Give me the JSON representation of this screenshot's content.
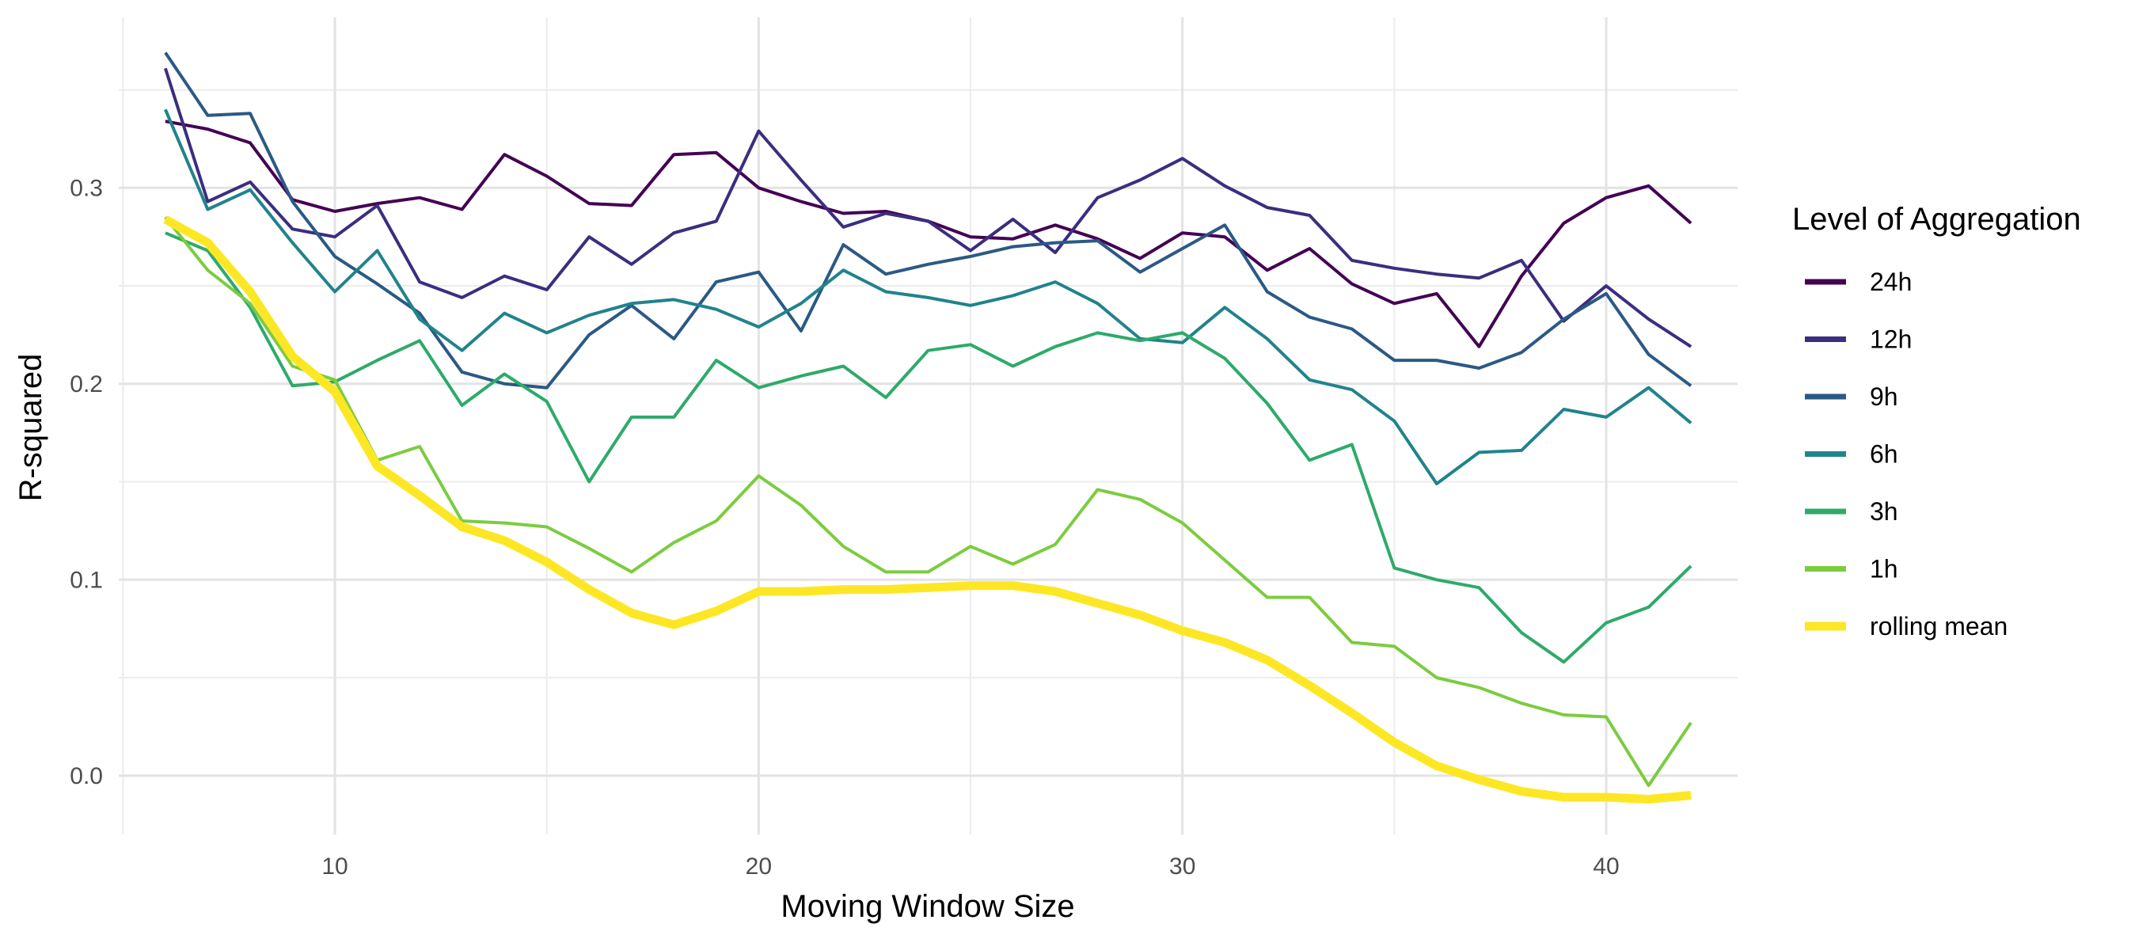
{
  "chart_data": {
    "type": "line",
    "xlabel": "Moving Window Size",
    "ylabel": "R-squared",
    "xlim": [
      4.9,
      43.1
    ],
    "ylim": [
      -0.03,
      0.387
    ],
    "x_ticks": [
      10,
      20,
      30,
      40
    ],
    "x_tick_labels": [
      "10",
      "20",
      "30",
      "40"
    ],
    "x_minor": [
      5,
      15,
      25,
      35
    ],
    "y_ticks": [
      0.0,
      0.1,
      0.2,
      0.3
    ],
    "y_tick_labels": [
      "0.0",
      "0.1",
      "0.2",
      "0.3"
    ],
    "y_minor": [
      0.05,
      0.15,
      0.25,
      0.35
    ],
    "grid": true,
    "legend_title": "Level of Aggregation",
    "legend_position": "right",
    "x": [
      6,
      7,
      8,
      9,
      10,
      11,
      12,
      13,
      14,
      15,
      16,
      17,
      18,
      19,
      20,
      21,
      22,
      23,
      24,
      25,
      26,
      27,
      28,
      29,
      30,
      31,
      32,
      33,
      34,
      35,
      36,
      37,
      38,
      39,
      40,
      41,
      42
    ],
    "series": [
      {
        "name": "24h",
        "color": "#440154",
        "width": "thin",
        "values": [
          0.334,
          0.33,
          0.323,
          0.294,
          0.288,
          0.292,
          0.295,
          0.289,
          0.317,
          0.306,
          0.292,
          0.291,
          0.317,
          0.318,
          0.3,
          0.293,
          0.287,
          0.288,
          0.283,
          0.275,
          0.274,
          0.281,
          0.274,
          0.264,
          0.277,
          0.275,
          0.258,
          0.269,
          0.251,
          0.241,
          0.246,
          0.219,
          0.255,
          0.282,
          0.295,
          0.301,
          0.282
        ]
      },
      {
        "name": "12h",
        "color": "#3b2e7f",
        "width": "thin",
        "values": [
          0.361,
          0.293,
          0.303,
          0.279,
          0.275,
          0.291,
          0.252,
          0.244,
          0.255,
          0.248,
          0.275,
          0.261,
          0.277,
          0.283,
          0.329,
          0.304,
          0.28,
          0.287,
          0.283,
          0.268,
          0.284,
          0.267,
          0.295,
          0.304,
          0.315,
          0.301,
          0.29,
          0.286,
          0.263,
          0.259,
          0.256,
          0.254,
          0.263,
          0.232,
          0.25,
          0.233,
          0.219
        ]
      },
      {
        "name": "9h",
        "color": "#2b5985",
        "width": "thin",
        "values": [
          0.369,
          0.337,
          0.338,
          0.293,
          0.265,
          0.251,
          0.236,
          0.206,
          0.2,
          0.198,
          0.225,
          0.24,
          0.223,
          0.252,
          0.257,
          0.227,
          0.271,
          0.256,
          0.261,
          0.265,
          0.27,
          0.272,
          0.273,
          0.257,
          0.269,
          0.281,
          0.247,
          0.234,
          0.228,
          0.212,
          0.212,
          0.208,
          0.216,
          0.233,
          0.246,
          0.215,
          0.199
        ]
      },
      {
        "name": "6h",
        "color": "#21838c",
        "width": "thin",
        "values": [
          0.34,
          0.289,
          0.299,
          0.272,
          0.247,
          0.268,
          0.233,
          0.217,
          0.236,
          0.226,
          0.235,
          0.241,
          0.243,
          0.238,
          0.229,
          0.241,
          0.258,
          0.247,
          0.244,
          0.24,
          0.245,
          0.252,
          0.241,
          0.223,
          0.221,
          0.239,
          0.223,
          0.202,
          0.197,
          0.181,
          0.149,
          0.165,
          0.166,
          0.187,
          0.183,
          0.198,
          0.18
        ]
      },
      {
        "name": "3h",
        "color": "#2eaa6a",
        "width": "thin",
        "values": [
          0.277,
          0.268,
          0.239,
          0.199,
          0.201,
          0.212,
          0.222,
          0.189,
          0.205,
          0.191,
          0.15,
          0.183,
          0.183,
          0.212,
          0.198,
          0.204,
          0.209,
          0.193,
          0.217,
          0.22,
          0.209,
          0.219,
          0.226,
          0.222,
          0.226,
          0.213,
          0.19,
          0.161,
          0.169,
          0.106,
          0.1,
          0.096,
          0.073,
          0.058,
          0.078,
          0.086,
          0.107
        ]
      },
      {
        "name": "1h",
        "color": "#7ccc3f",
        "width": "thin",
        "values": [
          0.285,
          0.258,
          0.241,
          0.209,
          0.202,
          0.161,
          0.168,
          0.13,
          0.129,
          0.127,
          0.116,
          0.104,
          0.119,
          0.13,
          0.153,
          0.138,
          0.117,
          0.104,
          0.104,
          0.117,
          0.108,
          0.118,
          0.146,
          0.141,
          0.129,
          0.11,
          0.091,
          0.091,
          0.068,
          0.066,
          0.05,
          0.045,
          0.037,
          0.031,
          0.03,
          -0.005,
          0.027
        ]
      },
      {
        "name": "rolling mean",
        "color": "#fde725",
        "width": "thick",
        "values": [
          0.284,
          0.272,
          0.247,
          0.214,
          0.196,
          0.158,
          0.143,
          0.127,
          0.12,
          0.109,
          0.095,
          0.083,
          0.077,
          0.084,
          0.094,
          0.094,
          0.095,
          0.095,
          0.096,
          0.097,
          0.097,
          0.094,
          0.088,
          0.082,
          0.074,
          0.068,
          0.059,
          0.046,
          0.032,
          0.017,
          0.005,
          -0.002,
          -0.008,
          -0.011,
          -0.011,
          -0.012,
          -0.01
        ]
      }
    ]
  }
}
